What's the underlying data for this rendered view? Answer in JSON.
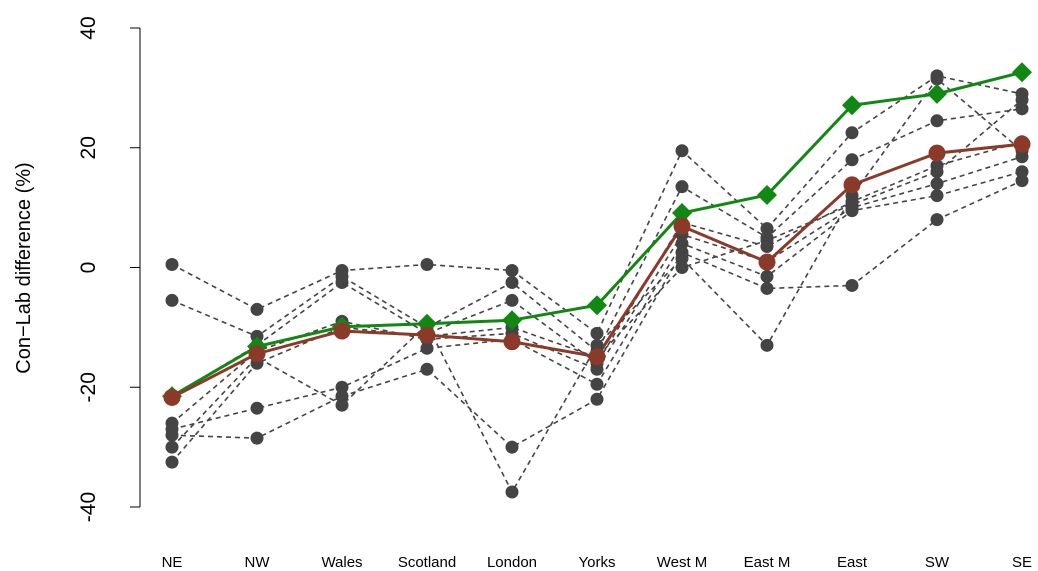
{
  "chart_data": {
    "type": "line",
    "y_label": "Con−Lab difference (%)",
    "categories": [
      "NE",
      "NW",
      "Wales",
      "Scotland",
      "London",
      "Yorks",
      "West M",
      "East M",
      "East",
      "SW",
      "SE"
    ],
    "ylim": [
      -40,
      40
    ],
    "yticks": [
      -40,
      -20,
      0,
      20,
      40
    ],
    "series": [
      {
        "color": "#444444",
        "line_style": "dashed",
        "marker": "circle",
        "values": [
          0.5,
          -7,
          -0.5,
          0.5,
          -0.5,
          -11,
          19.5,
          6.5,
          22.5,
          32,
          29
        ]
      },
      {
        "color": "#444444",
        "line_style": "dashed",
        "marker": "circle",
        "values": [
          -5.5,
          -11.5,
          -1.5,
          -10,
          -2.5,
          -14,
          13.5,
          5,
          18,
          24.5,
          26.5
        ]
      },
      {
        "color": "#444444",
        "line_style": "dashed",
        "marker": "circle",
        "values": [
          -21.5,
          -13,
          -2.5,
          -11,
          -5.5,
          -16,
          7.5,
          3.5,
          11,
          17,
          21
        ]
      },
      {
        "color": "#444444",
        "line_style": "dashed",
        "marker": "circle",
        "values": [
          -26,
          -14,
          -9,
          -12,
          -11,
          -17,
          5.5,
          1,
          10,
          14,
          18.5
        ]
      },
      {
        "color": "#444444",
        "line_style": "dashed",
        "marker": "circle",
        "values": [
          -27,
          -23.5,
          -20,
          -13.5,
          -12,
          -19.5,
          4,
          -1.5,
          9.5,
          12,
          16
        ]
      },
      {
        "color": "#444444",
        "line_style": "dashed",
        "marker": "circle",
        "values": [
          -28,
          -28.5,
          -21.5,
          -17,
          -30,
          -22,
          2.5,
          -3.5,
          -3,
          8,
          14.5
        ]
      },
      {
        "color": "#444444",
        "line_style": "dashed",
        "marker": "circle",
        "values": [
          -30,
          -15,
          -23,
          -9.5,
          -37.5,
          -13,
          1.5,
          -13,
          12,
          31.5,
          19.5
        ]
      },
      {
        "color": "#444444",
        "line_style": "dashed",
        "marker": "circle",
        "values": [
          -32.5,
          -16,
          -10,
          -11.5,
          -10,
          -15,
          0,
          4.5,
          10.5,
          16,
          28
        ]
      },
      {
        "color": "#118811",
        "line_style": "solid",
        "marker": "diamond",
        "values": [
          -21.5,
          -13.2,
          -9.9,
          -9.4,
          -8.8,
          -6.3,
          9.1,
          12.1,
          27.1,
          29,
          32.6
        ]
      },
      {
        "color": "#8b3a2a",
        "line_style": "solid",
        "marker": "circle-large",
        "values": [
          -21.7,
          -14.4,
          -10.6,
          -11.3,
          -12.4,
          -14.9,
          6.9,
          0.9,
          13.8,
          19.1,
          20.6
        ]
      }
    ]
  }
}
